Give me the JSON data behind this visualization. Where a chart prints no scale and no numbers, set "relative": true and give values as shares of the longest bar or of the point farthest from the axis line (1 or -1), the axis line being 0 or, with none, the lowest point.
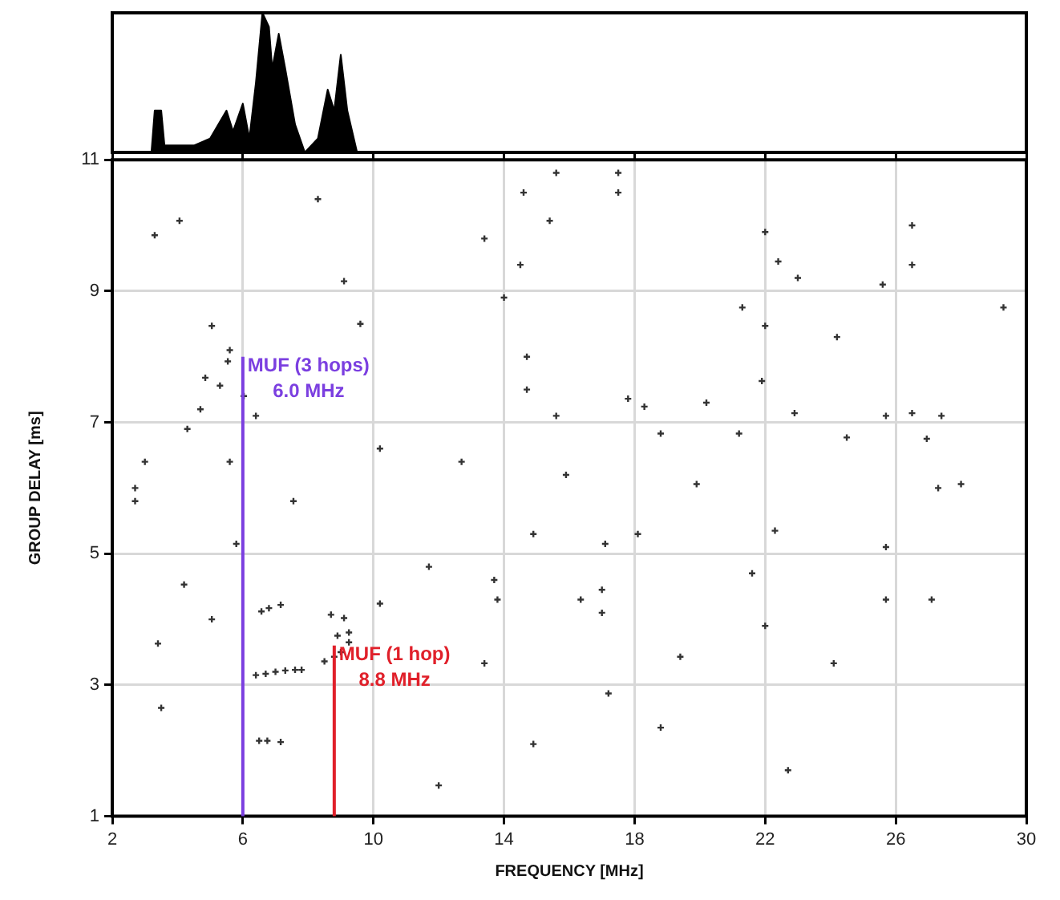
{
  "chart_data": [
    {
      "type": "area",
      "relative": true,
      "tick_labels": false,
      "xlim": [
        2,
        30
      ],
      "xticks": [
        {
          "value": 2,
          "label": null
        },
        {
          "value": 6,
          "label": null
        },
        {
          "value": 10,
          "label": null
        },
        {
          "value": 14,
          "label": null
        },
        {
          "value": 18,
          "label": null
        },
        {
          "value": 22,
          "label": null
        },
        {
          "value": 26,
          "label": null
        },
        {
          "value": 30,
          "label": null
        }
      ],
      "grid": false,
      "series": [
        {
          "color": "#000000",
          "x": [
            2,
            3.2,
            3.3,
            3.5,
            3.6,
            4.5,
            5.0,
            5.5,
            5.7,
            6.0,
            6.2,
            6.4,
            6.6,
            6.8,
            6.9,
            7.1,
            7.3,
            7.6,
            7.9,
            8.3,
            8.6,
            8.8,
            9.0,
            9.2,
            9.5,
            30
          ],
          "values": [
            0,
            0,
            0.3,
            0.3,
            0.05,
            0.05,
            0.1,
            0.3,
            0.15,
            0.35,
            0.1,
            0.5,
            1,
            0.9,
            0.6,
            0.85,
            0.6,
            0.2,
            0,
            0.1,
            0.45,
            0.3,
            0.7,
            0.3,
            0,
            0
          ]
        }
      ]
    },
    {
      "type": "scatter",
      "xlabel": "FREQUENCY [MHz]",
      "ylabel": "GROUP DELAY [ms]",
      "xlim": [
        2,
        30
      ],
      "ylim": [
        1,
        11
      ],
      "xticks": [
        2,
        6,
        10,
        14,
        18,
        22,
        26,
        30
      ],
      "yticks": [
        1,
        3,
        5,
        7,
        9,
        11
      ],
      "grid": true,
      "marker": "cross",
      "series": [
        {
          "color": "#333333",
          "x": [
            8.3,
            3.3,
            4.06,
            9.1,
            9.6,
            5.05,
            5.6,
            5.54,
            5.3,
            4.85,
            6.03,
            6.4,
            4.7,
            4.3,
            3.0,
            5.6,
            10.2,
            12.7,
            14.6,
            15.4,
            14.5,
            14.0,
            14.7,
            14.7,
            13.4,
            15.6,
            15.6,
            15.9,
            2.7,
            7.55,
            17.5,
            17.5,
            22.0,
            22.4,
            23.0,
            26.5,
            26.5,
            25.6,
            29.3,
            21.3,
            22.0,
            24.2,
            21.9,
            17.8,
            18.3,
            20.2,
            18.8,
            21.2,
            22.9,
            24.5,
            25.7,
            26.5,
            27.4,
            26.95,
            19.9,
            27.3,
            28.0,
            2.7,
            5.8,
            14.9,
            4.2,
            5.05,
            3.4,
            3.5,
            11.7,
            13.7,
            13.8,
            10.2,
            13.4,
            12.0,
            14.9,
            6.57,
            6.8,
            7.16,
            8.7,
            9.1,
            6.4,
            6.7,
            7.0,
            7.3,
            7.6,
            7.8,
            8.5,
            8.8,
            9.0,
            8.9,
            9.25,
            9.25,
            6.5,
            6.75,
            7.16,
            17.1,
            18.1,
            22.3,
            25.7,
            17.0,
            16.35,
            17.0,
            21.6,
            22.0,
            25.7,
            27.1,
            19.4,
            24.1,
            17.2,
            18.8,
            22.7
          ],
          "values": [
            10.4,
            9.85,
            10.07,
            9.15,
            8.5,
            8.47,
            8.1,
            7.93,
            7.56,
            7.68,
            7.4,
            7.1,
            7.2,
            6.9,
            6.4,
            6.4,
            6.6,
            6.4,
            10.5,
            10.07,
            9.4,
            8.9,
            8.0,
            7.5,
            9.8,
            10.8,
            7.1,
            6.2,
            6.0,
            5.8,
            10.8,
            10.5,
            9.9,
            9.45,
            9.2,
            10.0,
            9.4,
            9.1,
            8.75,
            8.75,
            8.47,
            8.3,
            7.63,
            7.36,
            7.24,
            7.3,
            6.83,
            6.83,
            7.14,
            6.77,
            7.1,
            7.14,
            7.1,
            6.75,
            6.06,
            6.0,
            6.06,
            5.8,
            5.15,
            5.3,
            4.53,
            4.0,
            3.63,
            2.65,
            4.8,
            4.6,
            4.3,
            4.24,
            3.33,
            1.47,
            2.1,
            4.12,
            4.17,
            4.22,
            4.07,
            4.02,
            3.15,
            3.17,
            3.2,
            3.22,
            3.23,
            3.23,
            3.36,
            3.43,
            3.5,
            3.75,
            3.8,
            3.65,
            2.15,
            2.15,
            2.13,
            5.15,
            5.3,
            5.35,
            5.1,
            4.45,
            4.3,
            4.1,
            4.7,
            3.9,
            4.3,
            4.3,
            3.43,
            3.33,
            2.87,
            2.35,
            1.7
          ]
        }
      ],
      "ref_lines": [
        {
          "axis": "x",
          "value": 6.0,
          "label": "MUF (3 hops)\n6.0 MHz",
          "color": "#7b3fe0"
        },
        {
          "axis": "x",
          "value": 8.8,
          "label": "MUF (1 hop)\n8.8 MHz",
          "color": "#e0202a"
        }
      ]
    }
  ]
}
